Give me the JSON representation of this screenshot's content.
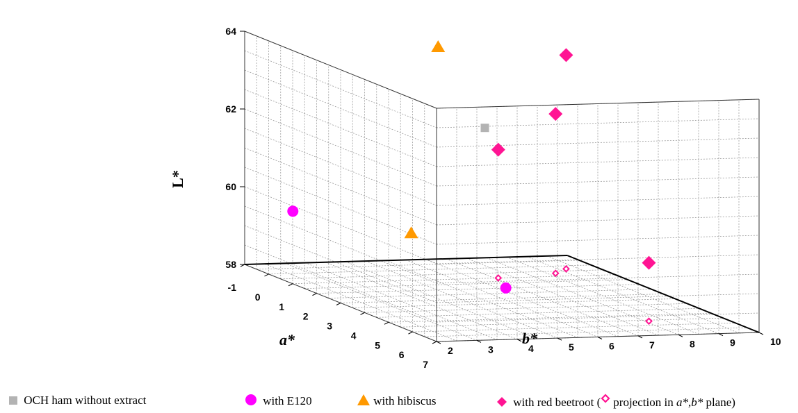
{
  "chart_data": {
    "type": "scatter",
    "xlabel": "a*",
    "ylabel": "b*",
    "zlabel": "L*",
    "x_ticks": [
      "-1",
      "0",
      "1",
      "2",
      "3",
      "4",
      "5",
      "6",
      "7"
    ],
    "y_ticks": [
      "2",
      "3",
      "4",
      "5",
      "6",
      "7",
      "8",
      "9",
      "10"
    ],
    "z_ticks": [
      "58",
      "60",
      "62",
      "64"
    ],
    "xlim": [
      -1,
      7
    ],
    "ylim": [
      2,
      10
    ],
    "zlim": [
      58,
      64
    ],
    "grid": true,
    "legend_position": "bottom",
    "series": [
      {
        "name": "OCH ham without extract",
        "marker": "square",
        "color": "#b3b3b3",
        "points": [
          {
            "x": -0.4,
            "y": 7.6,
            "z": 61.5
          }
        ]
      },
      {
        "name": "with E120",
        "marker": "circle",
        "color": "#ff00ff",
        "points": [
          {
            "x": 3.5,
            "y": 5.8,
            "z": 58.4
          },
          {
            "x": 0.0,
            "y": 2.6,
            "z": 59.6
          }
        ]
      },
      {
        "name": "with hibiscus",
        "marker": "triangle",
        "color": "#ff9900",
        "points": [
          {
            "x": -0.5,
            "y": 6.5,
            "z": 63.6
          },
          {
            "x": 0.9,
            "y": 5.0,
            "z": 59.2
          }
        ]
      },
      {
        "name": "with red beetroot",
        "marker": "diamond",
        "color": "#ff1493",
        "points": [
          {
            "x": 0.3,
            "y": 9.2,
            "z": 63.5
          },
          {
            "x": 0.7,
            "y": 8.7,
            "z": 62.1
          },
          {
            "x": 1.0,
            "y": 7.1,
            "z": 61.3
          },
          {
            "x": 5.6,
            "y": 8.1,
            "z": 59.5
          }
        ]
      }
    ],
    "projections": {
      "label": "projection in a*,b* plane",
      "marker": "hollow-diamond",
      "color": "#ff1493",
      "points": [
        {
          "x": 0.3,
          "y": 9.2
        },
        {
          "x": 0.7,
          "y": 8.7
        },
        {
          "x": 1.0,
          "y": 7.1
        },
        {
          "x": 5.6,
          "y": 8.1
        }
      ]
    }
  },
  "legend": {
    "och_label": "OCH ham without extract",
    "e120_label": "with E120",
    "hibiscus_label": "with hibiscus",
    "beetroot_label": "with red beetroot (",
    "projection_label_pre": "projection in ",
    "projection_label_var": "a*,b*",
    "projection_label_post": " plane)"
  }
}
